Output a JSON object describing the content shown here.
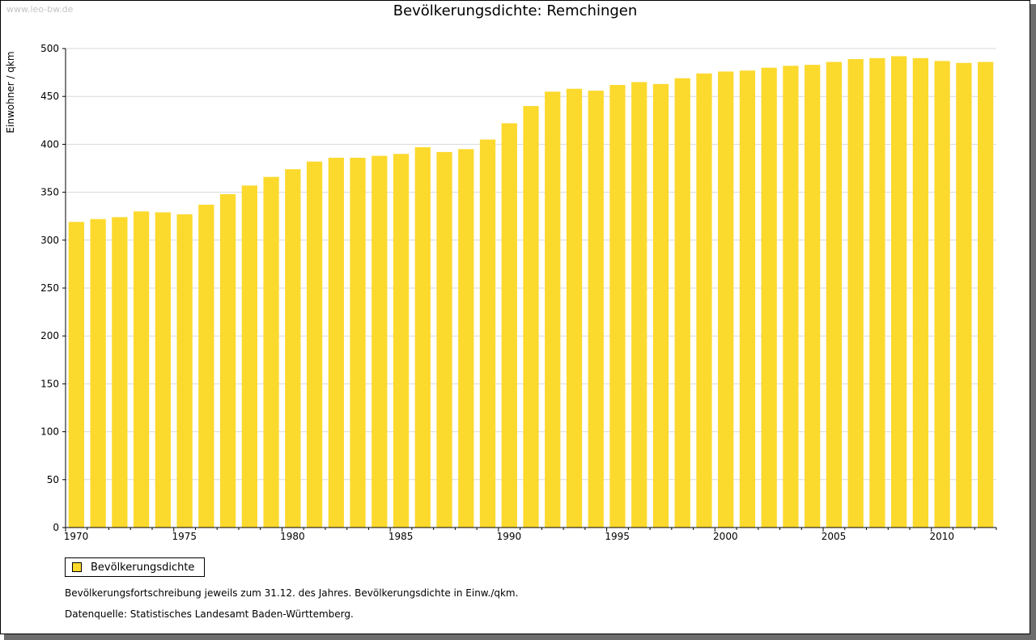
{
  "watermark": "www.leo-bw.de",
  "footnote": "Bevölkerungsfortschreibung jeweils zum 31.12. des Jahres. Bevölkerungsdichte in Einw./qkm.",
  "source": "Datenquelle: Statistisches Landesamt Baden-Württemberg.",
  "colors": {
    "bar": "#fcd92d",
    "grid": "#d9d9d9",
    "axis": "#000000"
  },
  "chart_data": {
    "type": "bar",
    "title": "Bevölkerungsdichte: Remchingen",
    "xlabel": "",
    "ylabel": "Einwohner / qkm",
    "ylim": [
      0,
      500
    ],
    "yticks": [
      0,
      50,
      100,
      150,
      200,
      250,
      300,
      350,
      400,
      450,
      500
    ],
    "xticks": [
      "1970",
      "1975",
      "1980",
      "1985",
      "1990",
      "1995",
      "2000",
      "2005",
      "2010"
    ],
    "grid": true,
    "legend_position": "bottom-left",
    "categories": [
      "1970",
      "1971",
      "1972",
      "1973",
      "1974",
      "1975",
      "1976",
      "1977",
      "1978",
      "1979",
      "1980",
      "1981",
      "1982",
      "1983",
      "1984",
      "1985",
      "1986",
      "1987",
      "1988",
      "1989",
      "1990",
      "1991",
      "1992",
      "1993",
      "1994",
      "1995",
      "1996",
      "1997",
      "1998",
      "1999",
      "2000",
      "2001",
      "2002",
      "2003",
      "2004",
      "2005",
      "2006",
      "2007",
      "2008",
      "2009",
      "2010",
      "2011",
      "2012"
    ],
    "series": [
      {
        "name": "Bevölkerungsdichte",
        "values": [
          319,
          322,
          324,
          330,
          329,
          327,
          337,
          348,
          357,
          366,
          374,
          382,
          386,
          386,
          388,
          390,
          397,
          392,
          395,
          405,
          422,
          440,
          455,
          458,
          456,
          462,
          465,
          463,
          469,
          474,
          476,
          477,
          480,
          482,
          483,
          486,
          489,
          490,
          492,
          490,
          487,
          485,
          486
        ]
      }
    ]
  }
}
